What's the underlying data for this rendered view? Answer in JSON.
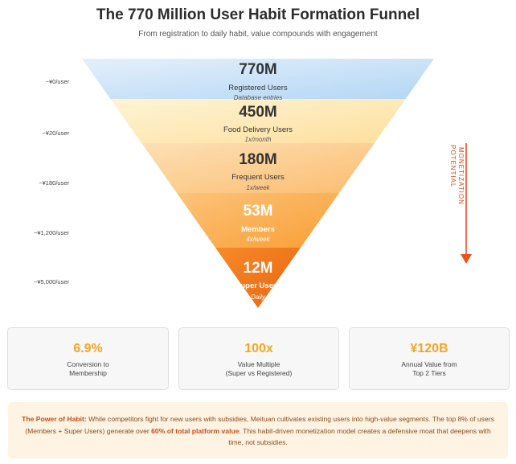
{
  "title": "The 770 Million User Habit Formation Funnel",
  "subtitle": "From registration to daily habit, value compounds with engagement",
  "chart_data": {
    "type": "funnel",
    "title": "The 770 Million User Habit Formation Funnel",
    "subtitle": "From registration to daily habit, value compounds with engagement",
    "stages": [
      {
        "value_label": "770M",
        "value": 770,
        "name": "Registered Users",
        "note": "Database entries",
        "value_per_user": "~¥0/user",
        "color": "#bfdcf7"
      },
      {
        "value_label": "450M",
        "value": 450,
        "name": "Food Delivery Users",
        "note": "1x/month",
        "value_per_user": "~¥20/user",
        "color": "#fde8b3"
      },
      {
        "value_label": "180M",
        "value": 180,
        "name": "Frequent Users",
        "note": "1x/week",
        "value_per_user": "~¥180/user",
        "color": "#fcc98a"
      },
      {
        "value_label": "53M",
        "value": 53,
        "name": "Members",
        "note": "4x/week",
        "value_per_user": "~¥1,200/user",
        "color": "#fbaa4c"
      },
      {
        "value_label": "12M",
        "value": 12,
        "name": "Super Users",
        "note": "Daily",
        "value_per_user": "~¥5,000/user",
        "color": "#f07a1a"
      }
    ],
    "arrow_label_line1": "MONETIZATION",
    "arrow_label_line2": "POTENTIAL",
    "arrow_color": "#e8541a"
  },
  "metrics": [
    {
      "value": "6.9%",
      "label_line1": "Conversion to",
      "label_line2": "Membership"
    },
    {
      "value": "100x",
      "label_line1": "Value Multiple",
      "label_line2": "(Super vs Registered)"
    },
    {
      "value": "¥120B",
      "label_line1": "Annual Value from",
      "label_line2": "Top 2 Tiers"
    }
  ],
  "insight": {
    "heading": "The Power of Habit:",
    "part1": " While competitors fight for new users with subsidies, Meituan cultivates existing users into high-value segments. The top 8% of users (Members + Super Users) generate over ",
    "emphasis": "60% of total platform value",
    "part2": ". This habit-driven monetization model creates a defensive moat that deepens with time, not subsidies."
  }
}
